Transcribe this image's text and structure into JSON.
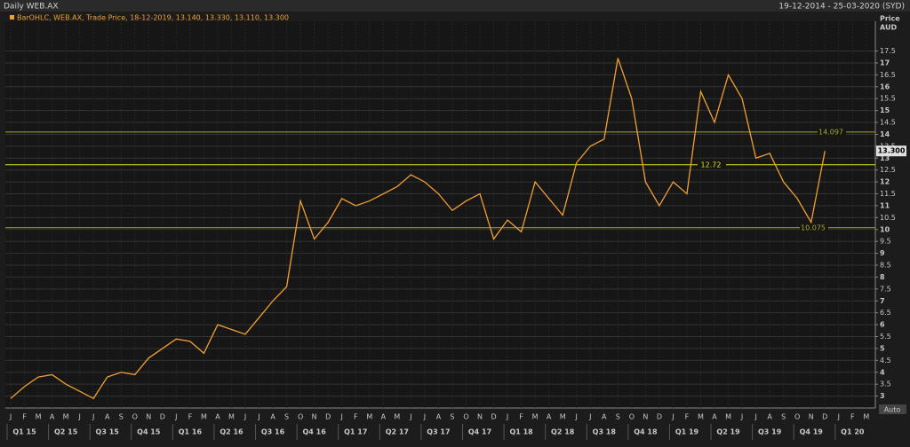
{
  "chart_data": {
    "type": "line",
    "title": "Daily WEB.AX",
    "date_range": "19-12-2014 - 25-03-2020 (SYD)",
    "legend_text": "BarOHLC, WEB.AX, Trade Price, 18-12-2019, 13.140, 13.330, 13.110, 13.300",
    "y_label": "Price",
    "y_unit": "AUD",
    "auto_label": "Auto",
    "categories": [
      "J",
      "F",
      "M",
      "A",
      "M",
      "J",
      "J",
      "A",
      "S",
      "O",
      "N",
      "D",
      "J",
      "F",
      "M",
      "A",
      "M",
      "J",
      "J",
      "A",
      "S",
      "O",
      "N",
      "D",
      "J",
      "F",
      "M",
      "A",
      "M",
      "J",
      "J",
      "A",
      "S",
      "O",
      "N",
      "D",
      "J",
      "F",
      "M",
      "A",
      "M",
      "J",
      "J",
      "A",
      "S",
      "O",
      "N",
      "D",
      "J",
      "F",
      "M",
      "A",
      "M",
      "J",
      "J",
      "A",
      "S",
      "O",
      "N",
      "D",
      "J",
      "F",
      "M"
    ],
    "quarters": [
      "Q1 15",
      "Q2 15",
      "Q3 15",
      "Q4 15",
      "Q1 16",
      "Q2 16",
      "Q3 16",
      "Q4 16",
      "Q1 17",
      "Q2 17",
      "Q3 17",
      "Q4 17",
      "Q1 18",
      "Q2 18",
      "Q3 18",
      "Q4 18",
      "Q1 19",
      "Q2 19",
      "Q3 19",
      "Q4 19",
      "Q1 20"
    ],
    "series": [
      {
        "name": "WEB.AX",
        "color": "#f0a030",
        "values": [
          2.9,
          3.4,
          3.8,
          3.9,
          3.5,
          3.2,
          2.9,
          3.8,
          4.0,
          3.9,
          4.6,
          5.0,
          5.4,
          5.3,
          4.8,
          6.0,
          5.8,
          5.6,
          6.3,
          7.0,
          7.6,
          11.2,
          9.6,
          10.3,
          11.3,
          11.0,
          11.2,
          11.5,
          11.8,
          12.3,
          12.0,
          11.5,
          10.8,
          11.2,
          11.5,
          9.6,
          10.4,
          9.9,
          12.0,
          11.3,
          10.6,
          12.8,
          13.5,
          13.8,
          17.2,
          15.5,
          12.0,
          11.0,
          12.0,
          11.5,
          15.8,
          14.5,
          16.5,
          15.5,
          13.0,
          13.2,
          12.0,
          11.3,
          10.3,
          13.3,
          null,
          null,
          null
        ]
      }
    ],
    "levels": [
      14.097,
      12.72,
      10.075
    ],
    "level_colors": [
      "#a8a828",
      "#e0e020",
      "#a8a828"
    ],
    "last_price": {
      "value": 13.3,
      "label": "13.300"
    },
    "ylim": [
      2.5,
      18.75
    ],
    "yticks": [
      3,
      3.5,
      4,
      4.5,
      5,
      5.5,
      6,
      6.5,
      7,
      7.5,
      8,
      8.5,
      9,
      9.5,
      10,
      10.5,
      11,
      11.5,
      12,
      12.5,
      13,
      13.5,
      14,
      14.5,
      15,
      15.5,
      16,
      16.5,
      17,
      17.5
    ],
    "grid": true
  }
}
